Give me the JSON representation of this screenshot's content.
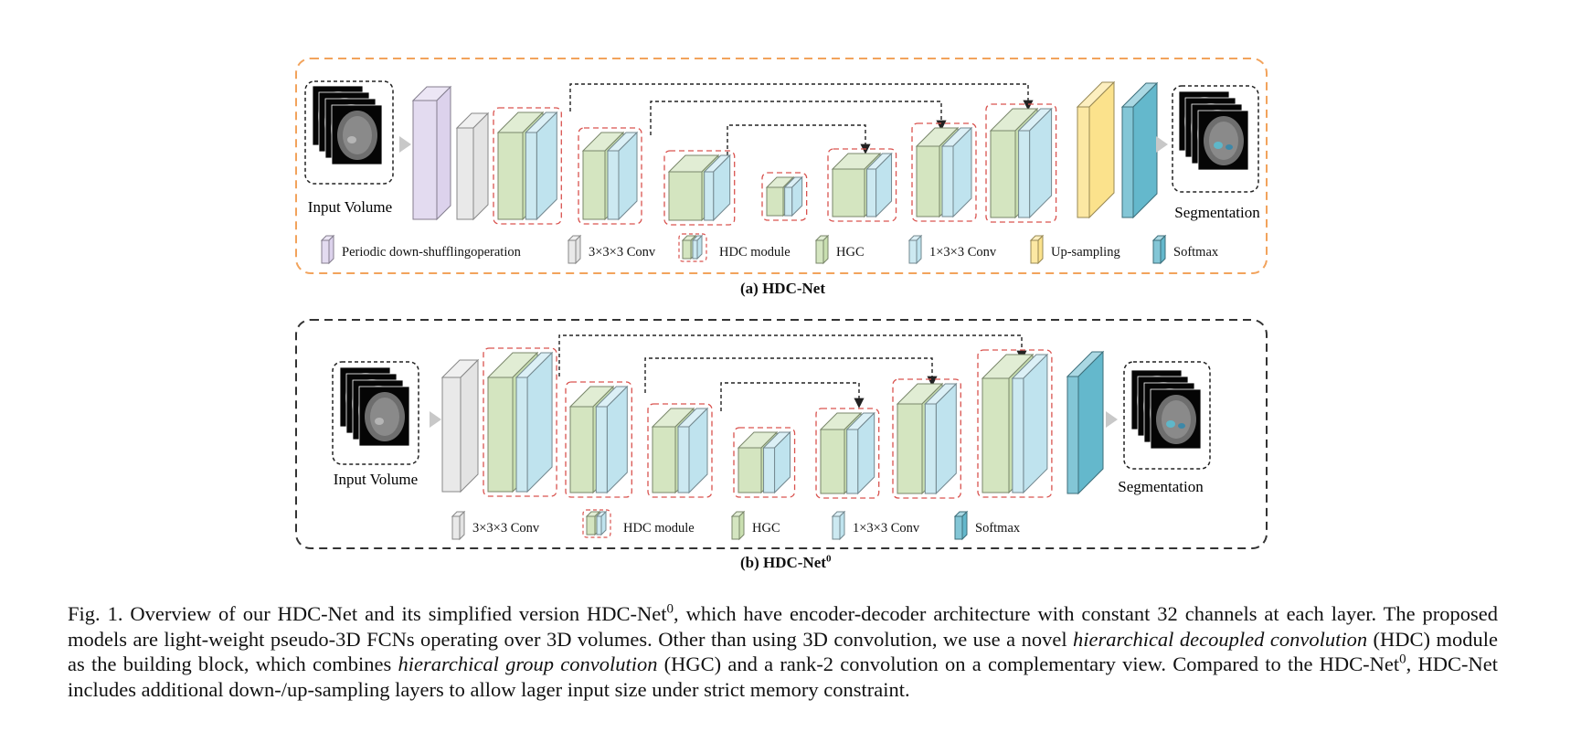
{
  "figure": {
    "panel_a": {
      "label": "(a) HDC-Net",
      "input_label": "Input Volume",
      "output_label": "Segmentation",
      "legend": [
        {
          "key": "purple",
          "text": "Periodic down-shufflingoperation"
        },
        {
          "key": "gray",
          "text": "3×3×3 Conv"
        },
        {
          "key": "hdc",
          "text": "HDC module"
        },
        {
          "key": "green",
          "text": "HGC"
        },
        {
          "key": "lightblue",
          "text": "1×3×3  Conv"
        },
        {
          "key": "yellow",
          "text": "Up-sampling"
        },
        {
          "key": "teal",
          "text": "Softmax"
        }
      ]
    },
    "panel_b": {
      "label": "(b)  HDC-Net",
      "label_sup": "0",
      "input_label": "Input Volume",
      "output_label": "Segmentation",
      "legend": [
        {
          "key": "gray",
          "text": "3×3×3 Conv"
        },
        {
          "key": "hdc",
          "text": "HDC module"
        },
        {
          "key": "green",
          "text": "HGC"
        },
        {
          "key": "lightblue",
          "text": "1×3×3  Conv"
        },
        {
          "key": "teal",
          "text": "Softmax"
        }
      ]
    },
    "colors": {
      "purple": "#dcd2ec",
      "gray": "#e3e3e3",
      "green": "#c9dfb0",
      "lightblue": "#bfe3ee",
      "yellow": "#fbe28c",
      "teal": "#64b8cc",
      "hdc_box": "#d9534f",
      "frame_a": "#f2a35c",
      "frame_b": "#333333"
    }
  },
  "caption": {
    "p1": "Fig. 1.  Overview of our HDC-Net and its simplified version HDC-Net",
    "sup1": "0",
    "p2": ", which have encoder-decoder architecture with constant 32 channels at each layer. The proposed models are light-weight pseudo-3D FCNs operating over 3D volumes. Other than using 3D convolution, we use a novel ",
    "i1": "hierarchical decoupled convolution",
    "p3": " (HDC) module as the building block, which combines ",
    "i2": "hierarchical group convolution",
    "p4": " (HGC) and a rank-2 convolution on a complementary view. Compared to the HDC-Net",
    "sup2": "0",
    "p5": ", HDC-Net includes additional down-/up-sampling layers to allow lager input size under strict memory constraint."
  }
}
